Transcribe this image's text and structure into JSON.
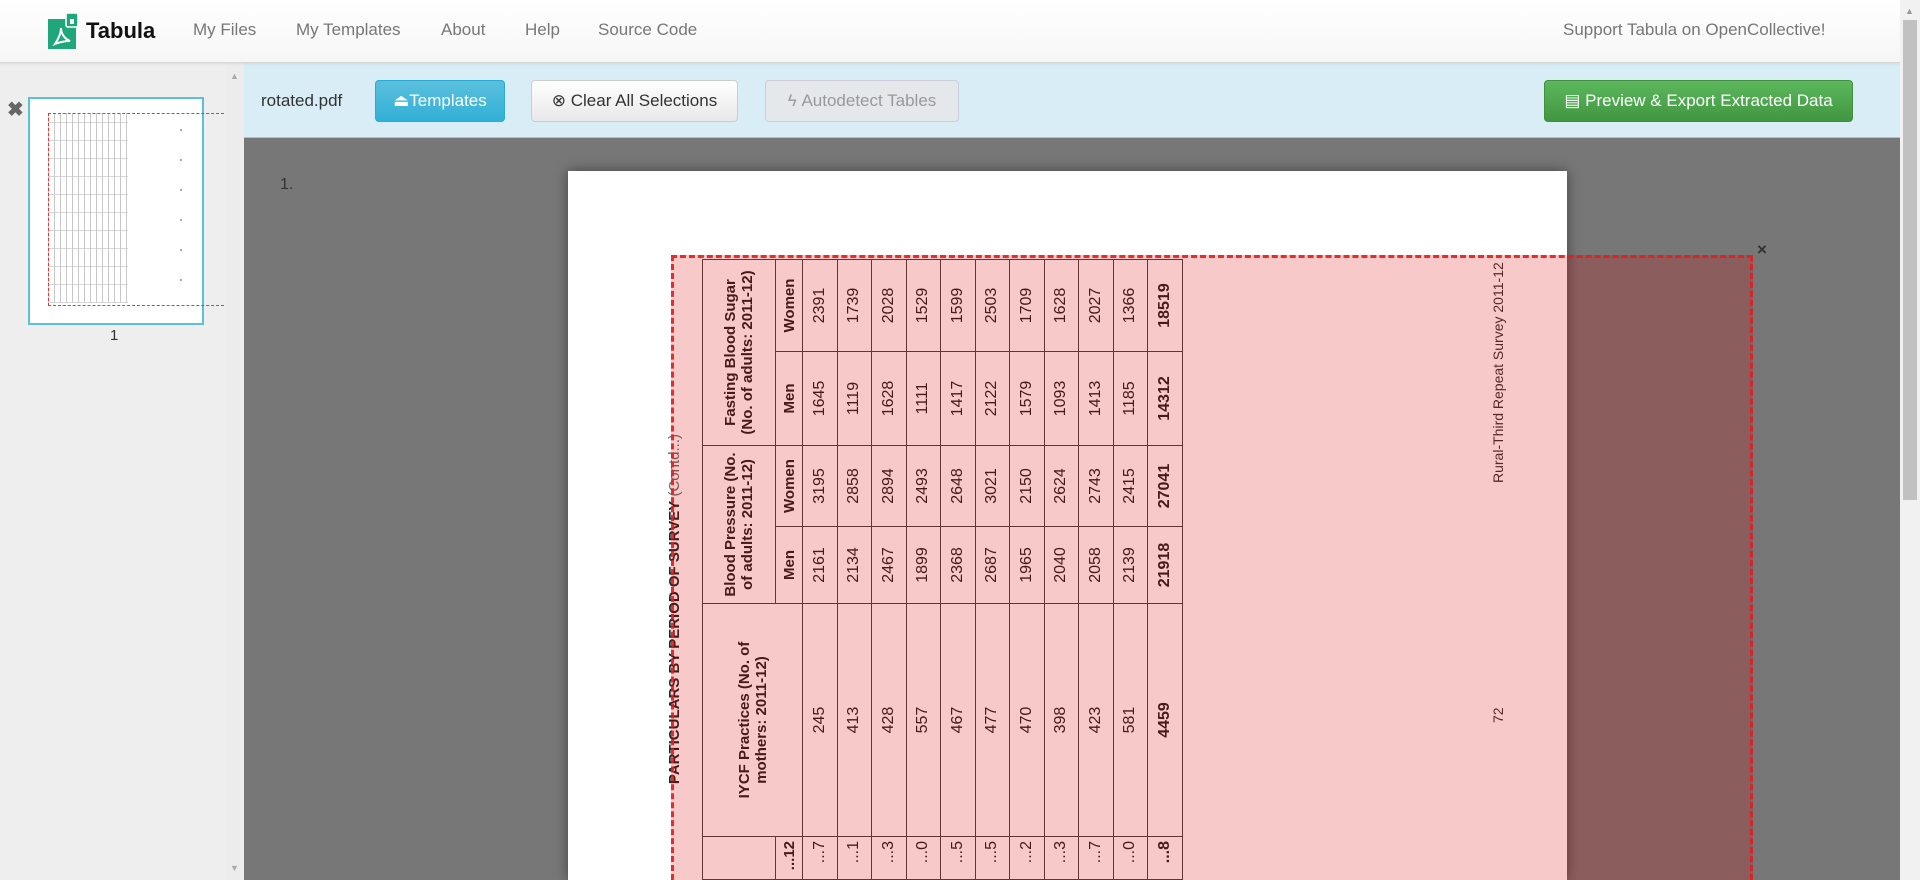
{
  "navbar": {
    "brand": "Tabula",
    "items": [
      "My Files",
      "My Templates",
      "About",
      "Help",
      "Source Code"
    ],
    "support": "Support Tabula on OpenCollective!"
  },
  "sidebar": {
    "remove_icon": "✖",
    "thumbnail_label": "1"
  },
  "toolbar": {
    "filename": "rotated.pdf",
    "templates": "Templates",
    "clear": "Clear All Selections",
    "autodetect": "Autodetect Tables",
    "export": "Preview & Export Extracted Data"
  },
  "colors": {
    "info": "#5bc0de",
    "success": "#5cb85c",
    "toolbar_bg": "#d9edf7",
    "selection": "#d90000"
  },
  "viewer": {
    "page_number": "1.",
    "selection_close": "×",
    "document": {
      "title": "PARTICULARS BY PERIOD OF SURVEY",
      "title_suffix": "(Contd...)",
      "footer": "Rural-Third Repeat Survey 2011-12",
      "page": "72",
      "table": {
        "groups": [
          {
            "label": "",
            "sub": [
              "...12"
            ]
          },
          {
            "label": "IYCF Practices (No. of mothers: 2011-12)",
            "sub": []
          },
          {
            "label": "Blood Pressure (No. of adults: 2011-12)",
            "sub": [
              "Men",
              "Women"
            ]
          },
          {
            "label": "Fasting  Blood Sugar (No. of adults: 2011-12)",
            "sub": [
              "Men",
              "Women"
            ]
          }
        ],
        "rows": [
          [
            "...7",
            "245",
            "2161",
            "3195",
            "1645",
            "2391"
          ],
          [
            "...1",
            "413",
            "2134",
            "2858",
            "1119",
            "1739"
          ],
          [
            "...3",
            "428",
            "2467",
            "2894",
            "1628",
            "2028"
          ],
          [
            "...0",
            "557",
            "1899",
            "2493",
            "1111",
            "1529"
          ],
          [
            "...5",
            "467",
            "2368",
            "2648",
            "1417",
            "1599"
          ],
          [
            "...5",
            "477",
            "2687",
            "3021",
            "2122",
            "2503"
          ],
          [
            "...2",
            "470",
            "1965",
            "2150",
            "1579",
            "1709"
          ],
          [
            "...3",
            "398",
            "2040",
            "2624",
            "1093",
            "1628"
          ],
          [
            "...7",
            "423",
            "2058",
            "2743",
            "1413",
            "2027"
          ],
          [
            "...0",
            "581",
            "2139",
            "2415",
            "1185",
            "1366"
          ],
          [
            "...8",
            "4459",
            "21918",
            "27041",
            "14312",
            "18519"
          ]
        ]
      }
    }
  }
}
